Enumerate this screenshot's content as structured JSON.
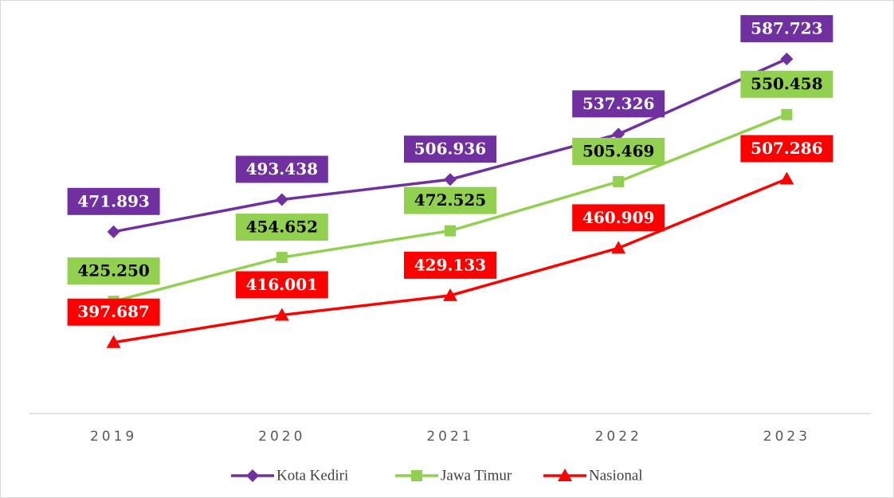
{
  "chart_data": {
    "type": "line",
    "categories": [
      "2019",
      "2020",
      "2021",
      "2022",
      "2023"
    ],
    "series": [
      {
        "name": "Kota Kediri",
        "color": "#7030a0",
        "marker": "diamond",
        "label_text_color": "#ffffff",
        "values": [
          471893,
          493438,
          506936,
          537326,
          587723
        ],
        "value_labels": [
          "471.893",
          "493.438",
          "506.936",
          "537.326",
          "587.723"
        ]
      },
      {
        "name": "Jawa Timur",
        "color": "#92d050",
        "marker": "square",
        "label_text_color": "#000000",
        "values": [
          425250,
          454652,
          472525,
          505469,
          550458
        ],
        "value_labels": [
          "425.250",
          "454.652",
          "472.525",
          "505.469",
          "550.458"
        ]
      },
      {
        "name": "Nasional",
        "color": "#ff0000",
        "marker": "triangle",
        "label_text_color": "#ffffff",
        "values": [
          397687,
          416001,
          429133,
          460909,
          507286
        ],
        "value_labels": [
          "397.687",
          "416.001",
          "429.133",
          "460.909",
          "507.286"
        ]
      }
    ],
    "ylim": [
      350000,
      600000
    ],
    "grid": false,
    "legend": "bottom"
  }
}
